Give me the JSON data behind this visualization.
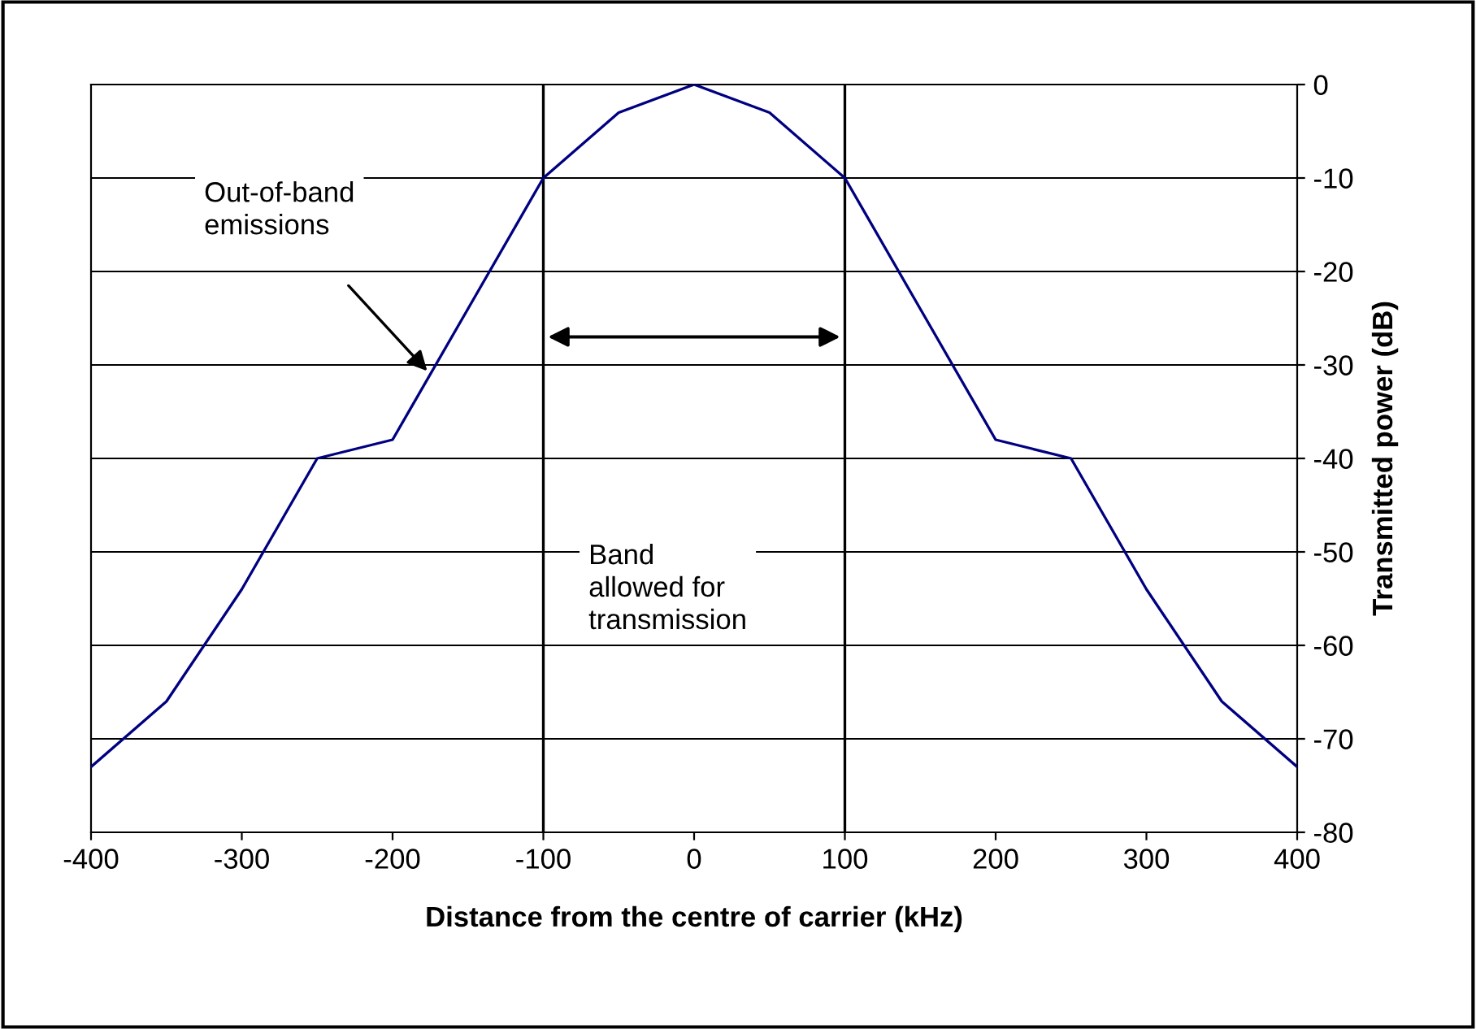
{
  "chart_data": {
    "type": "line",
    "xlabel": "Distance from the centre of carrier (kHz)",
    "ylabel": "Transmitted power (dB)",
    "x": [
      -400,
      -350,
      -300,
      -250,
      -200,
      -150,
      -100,
      -50,
      0,
      50,
      100,
      150,
      200,
      250,
      300,
      350,
      400
    ],
    "series": [
      {
        "color": "#000080",
        "values": [
          -73,
          -66,
          -54,
          -40,
          -38,
          -24,
          -10,
          -3,
          0,
          -3,
          -10,
          -24,
          -38,
          -40,
          -54,
          -66,
          -73
        ]
      }
    ],
    "xlim": [
      -400,
      400
    ],
    "ylim": [
      -80,
      0
    ],
    "xticks": [
      -400,
      -300,
      -200,
      -100,
      0,
      100,
      200,
      300,
      400
    ],
    "yticks": [
      -80,
      -70,
      -60,
      -50,
      -40,
      -30,
      -20,
      -10,
      0
    ],
    "grid": "y",
    "marker": "none",
    "line_style": "solid",
    "ref_lines": [
      {
        "axis": "x",
        "value": -100,
        "color": "#000000"
      },
      {
        "axis": "x",
        "value": 100,
        "color": "#000000"
      }
    ],
    "annotations": [
      "Out-of-band emissions",
      "Band allowed for transmission"
    ]
  }
}
